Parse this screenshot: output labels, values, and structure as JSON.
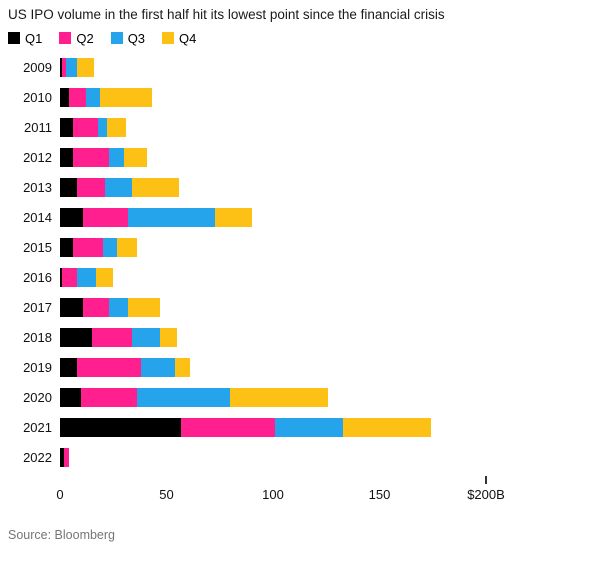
{
  "title": "US IPO volume in the first half hit its lowest point since the financial crisis",
  "source": "Source: Bloomberg",
  "chart_data": {
    "type": "bar",
    "stacked": true,
    "orientation": "horizontal",
    "unit": "$B",
    "title": "US IPO volume in the first half hit its lowest point since the financial crisis",
    "legend_position": "top",
    "grid": false,
    "xlim": [
      0,
      200
    ],
    "categories": [
      "2009",
      "2010",
      "2011",
      "2012",
      "2013",
      "2014",
      "2015",
      "2016",
      "2017",
      "2018",
      "2019",
      "2020",
      "2021",
      "2022"
    ],
    "series": [
      {
        "name": "Q1",
        "color": "#000000",
        "values": [
          1,
          4,
          6,
          6,
          8,
          11,
          6,
          1,
          11,
          15,
          8,
          10,
          57,
          2
        ]
      },
      {
        "name": "Q2",
        "color": "#ff1f8f",
        "values": [
          2,
          8,
          12,
          17,
          13,
          21,
          14,
          7,
          12,
          19,
          30,
          26,
          44,
          2
        ]
      },
      {
        "name": "Q3",
        "color": "#25a4ec",
        "values": [
          5,
          7,
          4,
          7,
          13,
          41,
          7,
          9,
          9,
          13,
          16,
          44,
          32,
          0
        ]
      },
      {
        "name": "Q4",
        "color": "#fdc015",
        "values": [
          8,
          24,
          9,
          11,
          22,
          17,
          9,
          8,
          15,
          8,
          7,
          46,
          41,
          0
        ]
      }
    ],
    "x_ticks": [
      {
        "value": 0,
        "label": "0",
        "mark": false
      },
      {
        "value": 50,
        "label": "50",
        "mark": false
      },
      {
        "value": 100,
        "label": "100",
        "mark": false
      },
      {
        "value": 150,
        "label": "150",
        "mark": false
      },
      {
        "value": 200,
        "label": "$200B",
        "mark": true
      }
    ]
  }
}
